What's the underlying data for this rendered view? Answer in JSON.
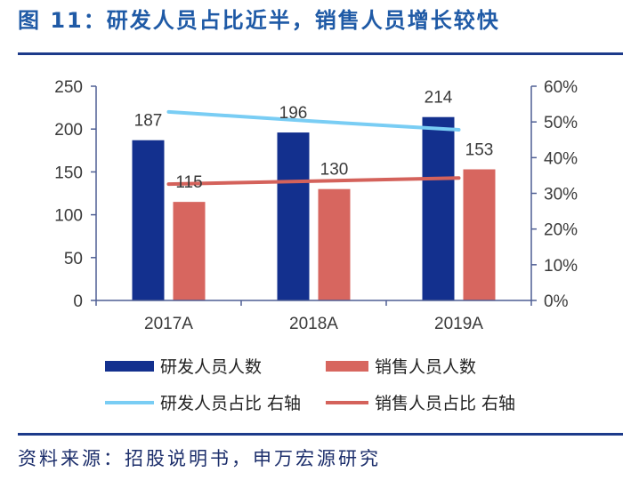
{
  "chart_data": {
    "type": "bar",
    "title": "图 11：研发人员占比近半，销售人员增长较快",
    "categories": [
      "2017A",
      "2018A",
      "2019A"
    ],
    "series": [
      {
        "name": "研发人员人数",
        "type": "bar",
        "axis": "left",
        "values": [
          187,
          196,
          214
        ],
        "color": "#13308e"
      },
      {
        "name": "销售人员人数",
        "type": "bar",
        "axis": "left",
        "values": [
          115,
          130,
          153
        ],
        "color": "#d7665f"
      },
      {
        "name": "研发人员占比 右轴",
        "type": "line",
        "axis": "right",
        "values": [
          52.8,
          50.2,
          47.8
        ],
        "color": "#79cdf4"
      },
      {
        "name": "销售人员占比 右轴",
        "type": "line",
        "axis": "right",
        "values": [
          32.6,
          33.4,
          34.3
        ],
        "color": "#d4625b"
      }
    ],
    "y_left": {
      "range": [
        0,
        250
      ],
      "ticks": [
        "0",
        "50",
        "100",
        "150",
        "200",
        "250"
      ]
    },
    "y_right": {
      "range": [
        0,
        60
      ],
      "ticks": [
        "0%",
        "10%",
        "20%",
        "30%",
        "40%",
        "50%",
        "60%"
      ]
    },
    "grid": false,
    "legend": "bottom"
  },
  "source": "资料来源：招股说明书，申万宏源研究"
}
